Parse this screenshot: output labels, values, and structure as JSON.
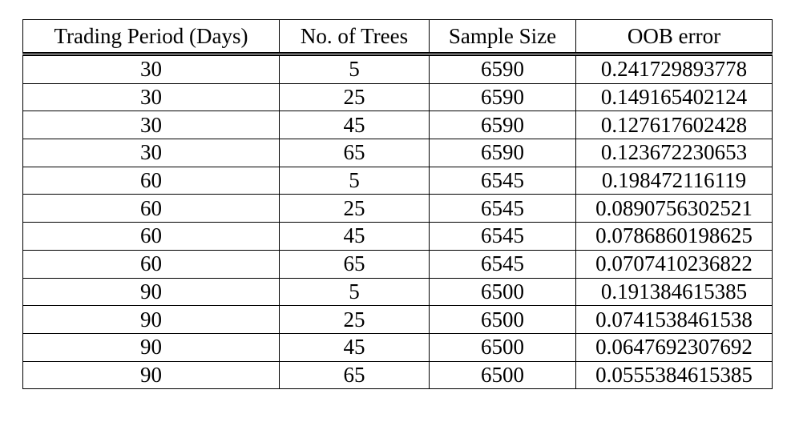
{
  "table": {
    "columns": [
      "Trading Period (Days)",
      "No. of Trees",
      "Sample Size",
      "OOB error"
    ],
    "rows": [
      [
        "30",
        "5",
        "6590",
        "0.241729893778"
      ],
      [
        "30",
        "25",
        "6590",
        "0.149165402124"
      ],
      [
        "30",
        "45",
        "6590",
        "0.127617602428"
      ],
      [
        "30",
        "65",
        "6590",
        "0.123672230653"
      ],
      [
        "60",
        "5",
        "6545",
        "0.198472116119"
      ],
      [
        "60",
        "25",
        "6545",
        "0.0890756302521"
      ],
      [
        "60",
        "45",
        "6545",
        "0.0786860198625"
      ],
      [
        "60",
        "65",
        "6545",
        "0.0707410236822"
      ],
      [
        "90",
        "5",
        "6500",
        "0.191384615385"
      ],
      [
        "90",
        "25",
        "6500",
        "0.0741538461538"
      ],
      [
        "90",
        "45",
        "6500",
        "0.0647692307692"
      ],
      [
        "90",
        "65",
        "6500",
        "0.0555384615385"
      ]
    ]
  }
}
